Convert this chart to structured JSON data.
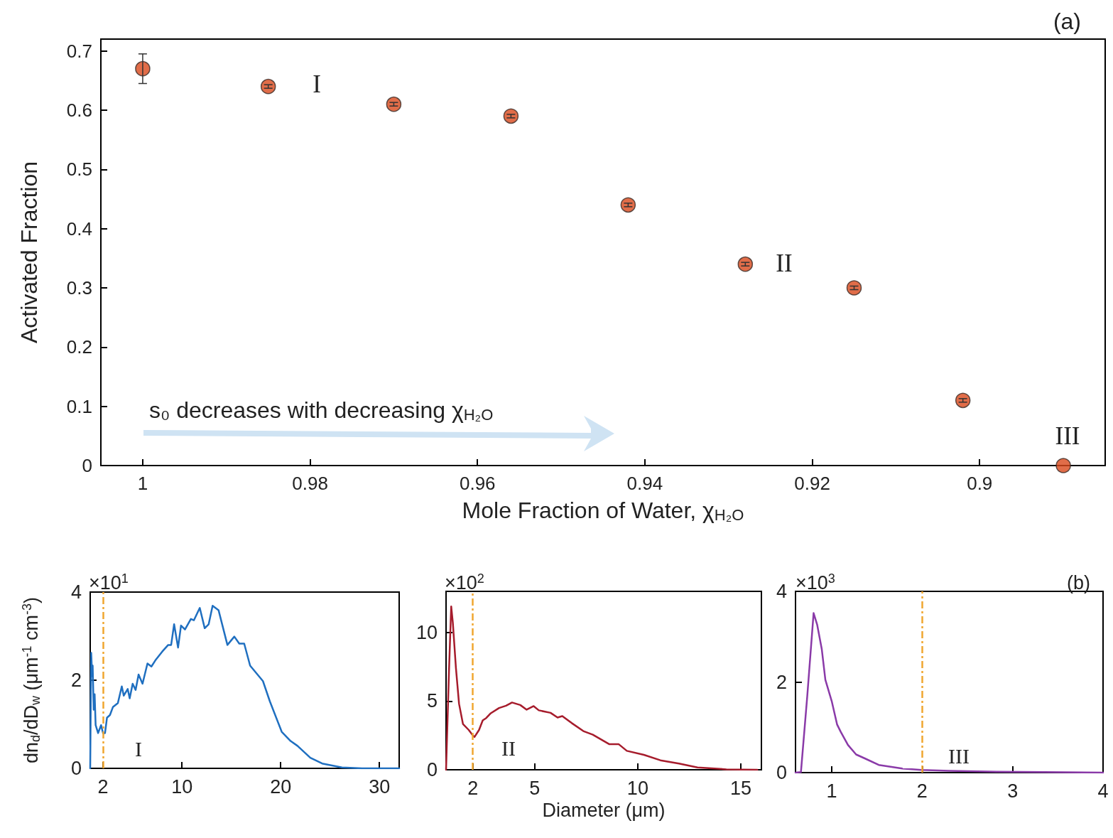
{
  "chart_data": [
    {
      "type": "scatter",
      "xlabel": "Mole Fraction of Water, χ$_{H₂O}$",
      "ylabel": "Activated Fraction",
      "x": [
        1.0,
        0.985,
        0.97,
        0.956,
        0.942,
        0.928,
        0.915,
        0.902,
        0.89
      ],
      "values": [
        0.67,
        0.64,
        0.61,
        0.59,
        0.44,
        0.34,
        0.3,
        0.11,
        0.0
      ],
      "errors": [
        0.025,
        0.003,
        0.003,
        0.003,
        0.003,
        0.003,
        0.003,
        0.003,
        null
      ],
      "color": "#d9481c",
      "marker": "circle",
      "xlim": [
        1.005,
        0.885
      ],
      "xticks": [
        1,
        0.98,
        0.96,
        0.94,
        0.92,
        0.9
      ],
      "ylim": [
        0,
        0.72
      ],
      "yticks": [
        0,
        0.1,
        0.2,
        0.3,
        0.4,
        0.5,
        0.6,
        0.7
      ],
      "annotations": [
        "(a)",
        "s₀ decreases with decreasing χ$_{H₂O}$",
        "I",
        "II",
        "III"
      ]
    },
    {
      "type": "line",
      "ylabel": "dn$_{d}$/dD$_{w}$ (μm$^{-1}$ cm$^{-3}$)",
      "color": "#1f6fc0",
      "marker": "none",
      "line_style": "solid",
      "x": [
        0.7,
        0.8,
        0.9,
        0.95,
        1.05,
        1.15,
        1.25,
        1.5,
        1.8,
        2.0,
        2.2,
        2.4,
        2.7,
        3.0,
        3.5,
        3.9,
        4.1,
        4.5,
        4.7,
        5.0,
        5.3,
        5.6,
        6.0,
        6.5,
        6.9,
        7.3,
        8.0,
        8.6,
        8.9,
        9.2,
        9.6,
        9.9,
        10.3,
        10.9,
        11.2,
        11.8,
        12.3,
        12.7,
        13.1,
        13.7,
        14.6,
        15.3,
        15.8,
        16.3,
        16.9,
        18.2,
        18.9,
        20.1,
        21.0,
        21.7,
        23.0,
        24.2,
        26.2,
        28.3,
        32
      ],
      "values": [
        0,
        2.62,
        2.09,
        2.33,
        1.33,
        1.68,
        0.98,
        0.8,
        0.98,
        0.8,
        0.8,
        1.15,
        1.21,
        1.39,
        1.48,
        1.86,
        1.65,
        1.8,
        1.59,
        1.92,
        1.78,
        2.13,
        1.92,
        2.38,
        2.31,
        2.45,
        2.65,
        2.8,
        2.8,
        3.27,
        2.74,
        3.24,
        3.15,
        3.39,
        3.36,
        3.64,
        3.18,
        3.27,
        3.69,
        3.59,
        2.8,
        2.99,
        2.83,
        2.83,
        2.33,
        1.98,
        1.52,
        0.83,
        0.62,
        0.51,
        0.24,
        0.11,
        0.02,
        0,
        0
      ],
      "xlim": [
        0.7,
        32
      ],
      "xticks": [
        2,
        10,
        20,
        30
      ],
      "ylim": [
        0,
        4
      ],
      "yticks": [
        0,
        2,
        4
      ],
      "ref_lines": [
        {
          "axis": "x",
          "value": 2,
          "color": "#f0a630",
          "line_style": "dashed"
        }
      ],
      "annotations": [
        "×10$^{1}$",
        "I"
      ]
    },
    {
      "type": "line",
      "xlabel": "Diameter (μm)",
      "color": "#a61c2c",
      "marker": "none",
      "line_style": "solid",
      "x": [
        0.7,
        0.84,
        0.95,
        1.03,
        1.18,
        1.33,
        1.52,
        1.8,
        1.97,
        2.08,
        2.3,
        2.48,
        2.65,
        2.87,
        3.27,
        3.61,
        3.9,
        4.3,
        4.61,
        4.95,
        5.2,
        5.77,
        6.11,
        6.34,
        6.8,
        7.36,
        7.82,
        8.61,
        9.07,
        9.47,
        10.3,
        11.1,
        12.0,
        12.9,
        14.3,
        15.8
      ],
      "values": [
        0,
        7.06,
        11.9,
        10.7,
        7.4,
        4.81,
        3.34,
        2.9,
        2.56,
        2.39,
        2.9,
        3.6,
        3.77,
        4.12,
        4.5,
        4.67,
        4.9,
        4.72,
        4.38,
        4.64,
        4.33,
        4.15,
        3.81,
        3.91,
        3.4,
        2.82,
        2.56,
        1.87,
        1.87,
        1.38,
        1.09,
        0.69,
        0.45,
        0.17,
        0.03,
        0
      ],
      "xlim": [
        0.7,
        16
      ],
      "xticks": [
        2,
        5,
        10,
        15
      ],
      "ylim": [
        0,
        13
      ],
      "yticks": [
        0,
        5,
        10
      ],
      "ref_lines": [
        {
          "axis": "x",
          "value": 2,
          "color": "#f0a630",
          "line_style": "dashed"
        }
      ],
      "annotations": [
        "×10$^{2}$",
        "II"
      ]
    },
    {
      "type": "line",
      "color": "#8a3aa8",
      "marker": "none",
      "line_style": "solid",
      "x": [
        0.6,
        0.66,
        0.73,
        0.8,
        0.84,
        0.89,
        0.93,
        1.0,
        1.06,
        1.1,
        1.18,
        1.27,
        1.37,
        1.52,
        1.78,
        1.99,
        2.3,
        2.82,
        3.35,
        4.0
      ],
      "values": [
        0,
        0.01,
        1.69,
        3.52,
        3.26,
        2.73,
        2.05,
        1.58,
        1.06,
        0.9,
        0.61,
        0.4,
        0.31,
        0.17,
        0.09,
        0.06,
        0.04,
        0.02,
        0.01,
        0
      ],
      "xlim": [
        0.6,
        4
      ],
      "xticks": [
        1,
        2,
        3,
        4
      ],
      "ylim": [
        0,
        4
      ],
      "yticks": [
        0,
        2,
        4
      ],
      "ref_lines": [
        {
          "axis": "x",
          "value": 2,
          "color": "#f0a630",
          "line_style": "dashed"
        }
      ],
      "annotations": [
        "×10$^{3}$",
        "(b)",
        "III"
      ]
    }
  ]
}
